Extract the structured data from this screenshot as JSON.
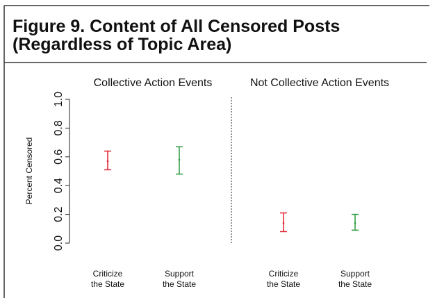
{
  "chart_data": {
    "type": "errorbar",
    "title": [
      "Figure 9.   Content of All Censored Posts",
      "(Regardless of Topic Area)"
    ],
    "y_label": "Percent Censored",
    "ylim": [
      0,
      1
    ],
    "yticks": [
      {
        "value": 0,
        "label": "0.0"
      },
      0.2,
      0.4,
      0.6,
      0.8,
      {
        "value": 1,
        "label": "1.0"
      }
    ],
    "panels": [
      {
        "title": "Collective Action Events",
        "categories": [
          [
            "Criticize",
            "the State"
          ],
          [
            "Support",
            "the State"
          ]
        ],
        "values": [
          0.57,
          0.58
        ],
        "lower": [
          0.51,
          0.48
        ],
        "upper": [
          0.64,
          0.67
        ],
        "colors": [
          "#e0202e",
          "#2a9a3c"
        ]
      },
      {
        "title": "Not Collective Action Events",
        "categories": [
          [
            "Criticize",
            "the State"
          ],
          [
            "Support",
            "the State"
          ]
        ],
        "values": [
          0.14,
          0.14
        ],
        "lower": [
          0.08,
          0.09
        ],
        "upper": [
          0.21,
          0.2
        ],
        "colors": [
          "#e0202e",
          "#2a9a3c"
        ]
      }
    ]
  }
}
